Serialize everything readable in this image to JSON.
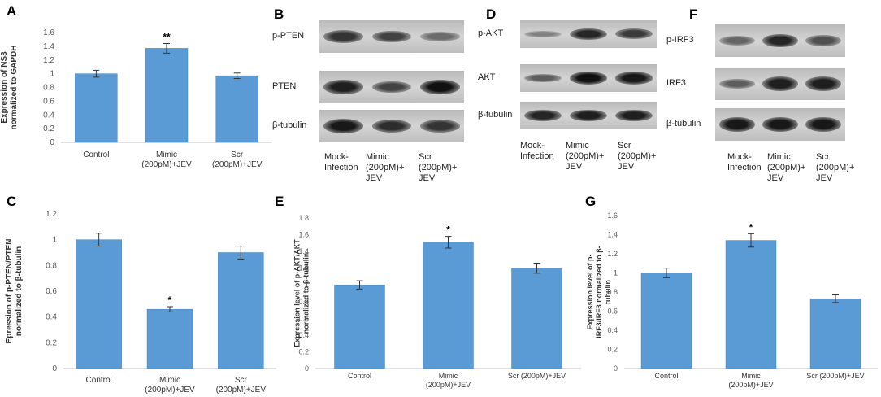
{
  "panels": {
    "A": {
      "letter": "A"
    },
    "B": {
      "letter": "B"
    },
    "C": {
      "letter": "C"
    },
    "D": {
      "letter": "D"
    },
    "E": {
      "letter": "E"
    },
    "F": {
      "letter": "F"
    },
    "G": {
      "letter": "G"
    }
  },
  "colors": {
    "bar": "#5b9bd5",
    "bar_edge": "#4a86c0",
    "axis": "#bfbfbf",
    "text": "#595959"
  },
  "chart_data": [
    {
      "panel": "A",
      "type": "bar",
      "categories": [
        "Control",
        "Mimic\n(200pM)+JEV",
        "Scr\n(200pM)+JEV"
      ],
      "values": [
        1.0,
        1.37,
        0.97
      ],
      "errors": [
        0.05,
        0.07,
        0.04
      ],
      "annotations": [
        "",
        "**",
        ""
      ],
      "ylabel": "Expression of NS3\nnormalized to GAPDH",
      "ylim": [
        0,
        1.6
      ],
      "yticks": [
        "0",
        "0.2",
        "0.4",
        "0.6",
        "0.8",
        "1",
        "1.2",
        "1.4",
        "1.6"
      ]
    },
    {
      "panel": "C",
      "type": "bar",
      "categories": [
        "Control",
        "Mimic\n(200pM)+JEV",
        "Scr\n(200pM)+JEV"
      ],
      "values": [
        1.0,
        0.46,
        0.9
      ],
      "errors": [
        0.05,
        0.02,
        0.05
      ],
      "annotations": [
        "",
        "*",
        ""
      ],
      "ylabel": "Epression of p-PTEN/PTEN\nnormalized to β-tubulin",
      "ylim": [
        0,
        1.2
      ],
      "yticks": [
        "0",
        "0.2",
        "0.4",
        "0.6",
        "0.8",
        "1",
        "1.2"
      ]
    },
    {
      "panel": "E",
      "type": "bar",
      "categories": [
        "Control",
        "Mimic\n(200pM)+JEV",
        "Scr (200pM)+JEV"
      ],
      "values": [
        1.0,
        1.51,
        1.2
      ],
      "errors": [
        0.05,
        0.07,
        0.06
      ],
      "annotations": [
        "",
        "*",
        ""
      ],
      "ylabel": "Expression level of p-AKT/AKT\nnormalized to β-tubulin",
      "ylim": [
        0,
        1.8
      ],
      "yticks": [
        "0",
        "0.2",
        "0.4",
        "0.6",
        "0.8",
        "1",
        "1.2",
        "1.4",
        "1.6",
        "1.8"
      ]
    },
    {
      "panel": "G",
      "type": "bar",
      "categories": [
        "Control",
        "Mimic\n(200pM)+JEV",
        "Scr (200pM)+JEV"
      ],
      "values": [
        1.0,
        1.34,
        0.73
      ],
      "errors": [
        0.05,
        0.07,
        0.04
      ],
      "annotations": [
        "",
        "*",
        ""
      ],
      "ylabel": "Expression  level of p-\nIRF3/IRF3 normalized to β-\ntubulin",
      "ylim": [
        0,
        1.6
      ],
      "yticks": [
        "0",
        "0.2",
        "0.4",
        "0.6",
        "0.8",
        "1",
        "1.2",
        "1.4",
        "1.6"
      ]
    }
  ],
  "blots": {
    "B": {
      "rows": [
        "p-PTEN",
        "PTEN",
        "β-tubulin"
      ],
      "lanes": [
        "Mock-\nInfection",
        "Mimic\n(200pM)+\nJEV",
        "Scr\n(200pM)+\nJEV"
      ],
      "intensity": [
        [
          0.7,
          0.6,
          0.3
        ],
        [
          0.85,
          0.6,
          0.95
        ],
        [
          0.9,
          0.75,
          0.7
        ]
      ]
    },
    "D": {
      "rows": [
        "p-AKT",
        "AKT",
        "β-tubulin"
      ],
      "lanes": [
        "Mock-\nInfection",
        "Mimic\n(200pM)+\nJEV",
        "Scr\n(200pM)+\nJEV"
      ],
      "intensity": [
        [
          0.15,
          0.8,
          0.65
        ],
        [
          0.4,
          0.95,
          0.9
        ],
        [
          0.8,
          0.85,
          0.85
        ]
      ]
    },
    "F": {
      "rows": [
        "p-IRF3",
        "IRF3",
        "β-tubulin"
      ],
      "lanes": [
        "Mock-\nInfection",
        "Mimic\n(200pM)+\nJEV",
        "Scr\n(200pM)+\nJEV"
      ],
      "intensity": [
        [
          0.35,
          0.8,
          0.5
        ],
        [
          0.4,
          0.85,
          0.85
        ],
        [
          0.9,
          0.9,
          0.9
        ]
      ]
    }
  }
}
